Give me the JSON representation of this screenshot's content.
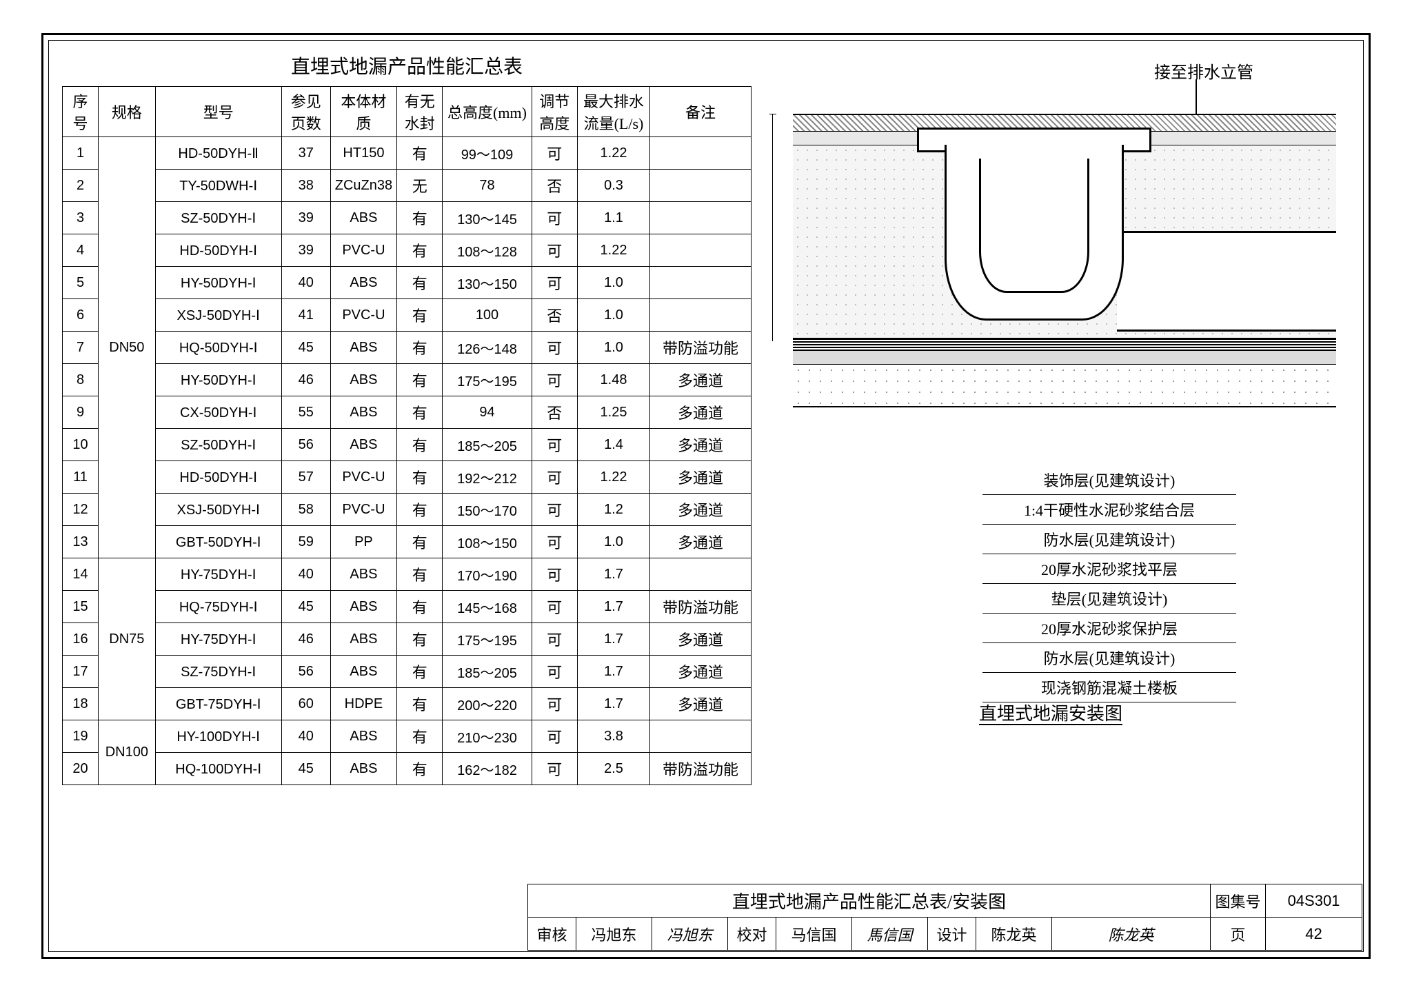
{
  "table": {
    "title": "直埋式地漏产品性能汇总表",
    "headers": {
      "seq": "序号",
      "spec": "规格",
      "model": "型号",
      "page": "参见页数",
      "material": "本体材质",
      "seal": "有无水封",
      "height": "总高度(mm)",
      "adjust": "调节高度",
      "flow": "最大排水流量(L/s)",
      "note": "备注"
    },
    "groups": [
      {
        "spec": "DN50",
        "rowspan": 13
      },
      {
        "spec": "DN75",
        "rowspan": 5
      },
      {
        "spec": "DN100",
        "rowspan": 2
      }
    ],
    "rows": [
      {
        "n": "1",
        "g": 0,
        "model": "HD-50DYH-Ⅱ",
        "page": "37",
        "mat": "HT150",
        "seal": "有",
        "h": "99～109",
        "adj": "可",
        "flow": "1.22",
        "note": ""
      },
      {
        "n": "2",
        "g": 0,
        "model": "TY-50DWH-Ⅰ",
        "page": "38",
        "mat": "ZCuZn38",
        "seal": "无",
        "h": "78",
        "adj": "否",
        "flow": "0.3",
        "note": ""
      },
      {
        "n": "3",
        "g": 0,
        "model": "SZ-50DYH-Ⅰ",
        "page": "39",
        "mat": "ABS",
        "seal": "有",
        "h": "130～145",
        "adj": "可",
        "flow": "1.1",
        "note": ""
      },
      {
        "n": "4",
        "g": 0,
        "model": "HD-50DYH-Ⅰ",
        "page": "39",
        "mat": "PVC-U",
        "seal": "有",
        "h": "108～128",
        "adj": "可",
        "flow": "1.22",
        "note": ""
      },
      {
        "n": "5",
        "g": 0,
        "model": "HY-50DYH-Ⅰ",
        "page": "40",
        "mat": "ABS",
        "seal": "有",
        "h": "130～150",
        "adj": "可",
        "flow": "1.0",
        "note": ""
      },
      {
        "n": "6",
        "g": 0,
        "model": "XSJ-50DYH-Ⅰ",
        "page": "41",
        "mat": "PVC-U",
        "seal": "有",
        "h": "100",
        "adj": "否",
        "flow": "1.0",
        "note": ""
      },
      {
        "n": "7",
        "g": 0,
        "model": "HQ-50DYH-Ⅰ",
        "page": "45",
        "mat": "ABS",
        "seal": "有",
        "h": "126～148",
        "adj": "可",
        "flow": "1.0",
        "note": "带防溢功能"
      },
      {
        "n": "8",
        "g": 0,
        "model": "HY-50DYH-Ⅰ",
        "page": "46",
        "mat": "ABS",
        "seal": "有",
        "h": "175～195",
        "adj": "可",
        "flow": "1.48",
        "note": "多通道"
      },
      {
        "n": "9",
        "g": 0,
        "model": "CX-50DYH-Ⅰ",
        "page": "55",
        "mat": "ABS",
        "seal": "有",
        "h": "94",
        "adj": "否",
        "flow": "1.25",
        "note": "多通道"
      },
      {
        "n": "10",
        "g": 0,
        "model": "SZ-50DYH-Ⅰ",
        "page": "56",
        "mat": "ABS",
        "seal": "有",
        "h": "185～205",
        "adj": "可",
        "flow": "1.4",
        "note": "多通道"
      },
      {
        "n": "11",
        "g": 0,
        "model": "HD-50DYH-Ⅰ",
        "page": "57",
        "mat": "PVC-U",
        "seal": "有",
        "h": "192～212",
        "adj": "可",
        "flow": "1.22",
        "note": "多通道"
      },
      {
        "n": "12",
        "g": 0,
        "model": "XSJ-50DYH-Ⅰ",
        "page": "58",
        "mat": "PVC-U",
        "seal": "有",
        "h": "150～170",
        "adj": "可",
        "flow": "1.2",
        "note": "多通道"
      },
      {
        "n": "13",
        "g": 0,
        "model": "GBT-50DYH-Ⅰ",
        "page": "59",
        "mat": "PP",
        "seal": "有",
        "h": "108～150",
        "adj": "可",
        "flow": "1.0",
        "note": "多通道"
      },
      {
        "n": "14",
        "g": 1,
        "model": "HY-75DYH-Ⅰ",
        "page": "40",
        "mat": "ABS",
        "seal": "有",
        "h": "170～190",
        "adj": "可",
        "flow": "1.7",
        "note": ""
      },
      {
        "n": "15",
        "g": 1,
        "model": "HQ-75DYH-Ⅰ",
        "page": "45",
        "mat": "ABS",
        "seal": "有",
        "h": "145～168",
        "adj": "可",
        "flow": "1.7",
        "note": "带防溢功能"
      },
      {
        "n": "16",
        "g": 1,
        "model": "HY-75DYH-Ⅰ",
        "page": "46",
        "mat": "ABS",
        "seal": "有",
        "h": "175～195",
        "adj": "可",
        "flow": "1.7",
        "note": "多通道"
      },
      {
        "n": "17",
        "g": 1,
        "model": "SZ-75DYH-Ⅰ",
        "page": "56",
        "mat": "ABS",
        "seal": "有",
        "h": "185～205",
        "adj": "可",
        "flow": "1.7",
        "note": "多通道"
      },
      {
        "n": "18",
        "g": 1,
        "model": "GBT-75DYH-Ⅰ",
        "page": "60",
        "mat": "HDPE",
        "seal": "有",
        "h": "200～220",
        "adj": "可",
        "flow": "1.7",
        "note": "多通道"
      },
      {
        "n": "19",
        "g": 2,
        "model": "HY-100DYH-Ⅰ",
        "page": "40",
        "mat": "ABS",
        "seal": "有",
        "h": "210～230",
        "adj": "可",
        "flow": "3.8",
        "note": ""
      },
      {
        "n": "20",
        "g": 2,
        "model": "HQ-100DYH-Ⅰ",
        "page": "45",
        "mat": "ABS",
        "seal": "有",
        "h": "162～182",
        "adj": "可",
        "flow": "2.5",
        "note": "带防溢功能"
      }
    ]
  },
  "diagram": {
    "top_label": "接至排水立管",
    "layers": [
      "装饰层(见建筑设计)",
      "1:4干硬性水泥砂浆结合层",
      "防水层(见建筑设计)",
      "20厚水泥砂浆找平层",
      "垫层(见建筑设计)",
      "20厚水泥砂浆保护层",
      "防水层(见建筑设计)",
      "现浇钢筋混凝土楼板"
    ],
    "title": "直埋式地漏安装图"
  },
  "titleblock": {
    "drawing_title": "直埋式地漏产品性能汇总表/安装图",
    "set_no_label": "图集号",
    "set_no": "04S301",
    "review_label": "审核",
    "review_name": "冯旭东",
    "check_label": "校对",
    "check_name": "马信国",
    "design_label": "设计",
    "design_name": "陈龙英",
    "page_label": "页",
    "page_no": "42"
  }
}
